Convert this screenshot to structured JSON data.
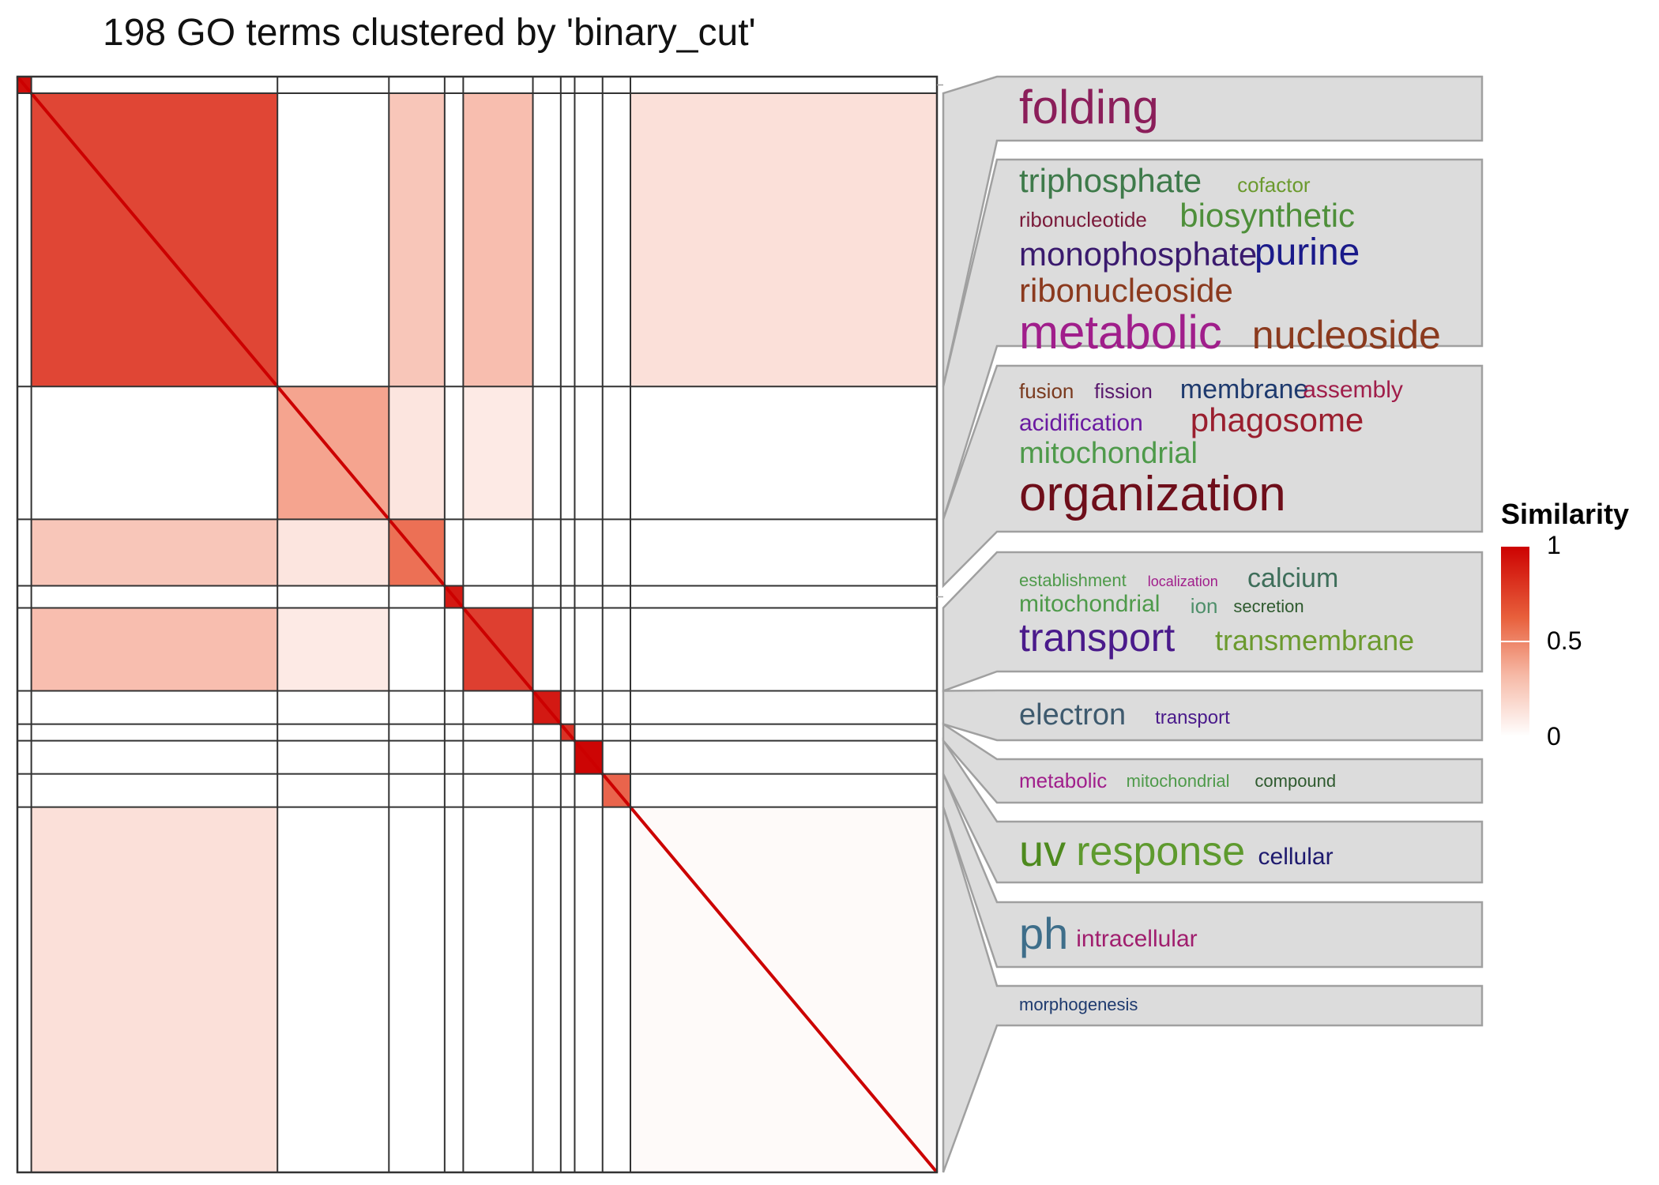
{
  "chart_data": {
    "type": "heatmap",
    "title": "198 GO terms clustered by 'binary_cut'",
    "n_terms": 198,
    "clusters": [
      {
        "id": 1,
        "size": 3,
        "mean_similarity": 0.95
      },
      {
        "id": 2,
        "size": 53,
        "mean_similarity": 0.72
      },
      {
        "id": 3,
        "size": 24,
        "mean_similarity": 0.35
      },
      {
        "id": 4,
        "size": 12,
        "mean_similarity": 0.55
      },
      {
        "id": 5,
        "size": 4,
        "mean_similarity": 0.9
      },
      {
        "id": 6,
        "size": 15,
        "mean_similarity": 0.75
      },
      {
        "id": 7,
        "size": 6,
        "mean_similarity": 0.9
      },
      {
        "id": 8,
        "size": 3,
        "mean_similarity": 0.8
      },
      {
        "id": 9,
        "size": 6,
        "mean_similarity": 0.98
      },
      {
        "id": 10,
        "size": 6,
        "mean_similarity": 0.6
      },
      {
        "id": 11,
        "size": 66,
        "mean_similarity": 0.02
      }
    ],
    "legend": {
      "title": "Similarity",
      "ticks": [
        "1",
        "0.5",
        "0"
      ],
      "min": 0,
      "max": 1,
      "low_color": "#ffffff",
      "high_color": "#cc0000"
    },
    "word_clouds": [
      {
        "cluster": 2,
        "words": [
          {
            "text": "folding",
            "color": "#8b1e5a",
            "size": 60
          }
        ]
      },
      {
        "cluster": 3,
        "words": [
          {
            "text": "triphosphate",
            "color": "#3e7a4a",
            "size": 42
          },
          {
            "text": "cofactor",
            "color": "#6b9a2e",
            "size": 26
          },
          {
            "text": "ribonucleotide",
            "color": "#7a1a3a",
            "size": 26
          },
          {
            "text": "biosynthetic",
            "color": "#4e8f3a",
            "size": 42
          },
          {
            "text": "monophosphate",
            "color": "#3a1a6e",
            "size": 42
          },
          {
            "text": "purine",
            "color": "#1a1a8a",
            "size": 48
          },
          {
            "text": "ribonucleoside",
            "color": "#8b3a1e",
            "size": 42
          },
          {
            "text": "metabolic",
            "color": "#a01e8b",
            "size": 60
          },
          {
            "text": "nucleoside",
            "color": "#8b3a1e",
            "size": 50
          }
        ]
      },
      {
        "cluster": 4,
        "words": [
          {
            "text": "fusion",
            "color": "#7a3a1e",
            "size": 26
          },
          {
            "text": "fission",
            "color": "#5a1a6e",
            "size": 26
          },
          {
            "text": "membrane",
            "color": "#1e3a6e",
            "size": 34
          },
          {
            "text": "assembly",
            "color": "#a01e4a",
            "size": 30
          },
          {
            "text": "acidification",
            "color": "#6a1aa0",
            "size": 30
          },
          {
            "text": "phagosome",
            "color": "#9a1e2e",
            "size": 42
          },
          {
            "text": "mitochondrial",
            "color": "#4e9a4a",
            "size": 38
          },
          {
            "text": "organization",
            "color": "#6e0e1a",
            "size": 62
          }
        ]
      },
      {
        "cluster": 6,
        "words": [
          {
            "text": "establishment",
            "color": "#4e9a4a",
            "size": 22
          },
          {
            "text": "localization",
            "color": "#a01e8b",
            "size": 18
          },
          {
            "text": "calcium",
            "color": "#3e6e5a",
            "size": 34
          },
          {
            "text": "mitochondrial",
            "color": "#4e9a4a",
            "size": 30
          },
          {
            "text": "ion",
            "color": "#4e8f6a",
            "size": 26
          },
          {
            "text": "secretion",
            "color": "#2e5a2e",
            "size": 22
          },
          {
            "text": "transport",
            "color": "#4a1a8b",
            "size": 50
          },
          {
            "text": "transmembrane",
            "color": "#6b9a2e",
            "size": 36
          }
        ]
      },
      {
        "cluster": 7,
        "words": [
          {
            "text": "electron",
            "color": "#3e5a6e",
            "size": 38
          },
          {
            "text": "transport",
            "color": "#4a1a8b",
            "size": 24
          }
        ]
      },
      {
        "cluster": 8,
        "words": [
          {
            "text": "metabolic",
            "color": "#a01e8b",
            "size": 26
          },
          {
            "text": "mitochondrial",
            "color": "#4e9a4a",
            "size": 22
          },
          {
            "text": "compound",
            "color": "#2e5a2e",
            "size": 22
          }
        ]
      },
      {
        "cluster": 9,
        "words": [
          {
            "text": "uv",
            "color": "#4e8a1e",
            "size": 56
          },
          {
            "text": "response",
            "color": "#5e9a2e",
            "size": 52
          },
          {
            "text": "cellular",
            "color": "#1e1a6e",
            "size": 30
          }
        ]
      },
      {
        "cluster": 10,
        "words": [
          {
            "text": "ph",
            "color": "#3e6e8a",
            "size": 56
          },
          {
            "text": "intracellular",
            "color": "#a01e6e",
            "size": 30
          }
        ]
      },
      {
        "cluster": 11,
        "words": [
          {
            "text": "morphogenesis",
            "color": "#1e3a6e",
            "size": 22
          }
        ]
      }
    ]
  }
}
